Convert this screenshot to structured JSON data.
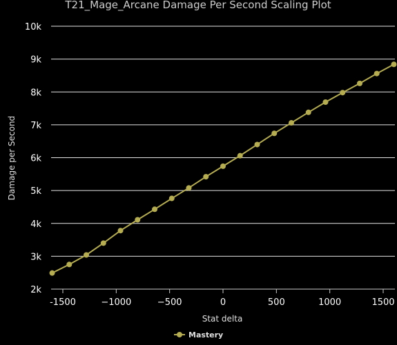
{
  "chart_data": {
    "type": "line",
    "title": "T21_Mage_Arcane Damage Per Second Scaling Plot",
    "xlabel": "Stat delta",
    "ylabel": "Damage per Second",
    "xlim": [
      -1610,
      1610
    ],
    "ylim": [
      2000,
      10000
    ],
    "x_ticks": [
      -1500,
      -1000,
      -500,
      0,
      500,
      1000,
      1500
    ],
    "x_tick_labels": [
      "-1500",
      "−1000",
      "−500",
      "0",
      "500",
      "1000",
      "1500"
    ],
    "y_ticks": [
      2000,
      3000,
      4000,
      5000,
      6000,
      7000,
      8000,
      9000,
      10000
    ],
    "y_tick_labels": [
      "2k",
      "3k",
      "4k",
      "5k",
      "6k",
      "7k",
      "8k",
      "9k",
      "10k"
    ],
    "grid": true,
    "legend_position": "bottom-center",
    "series": [
      {
        "name": "Mastery",
        "color": "#b5ad4f",
        "x": [
          -1600,
          -1440,
          -1280,
          -1120,
          -960,
          -800,
          -640,
          -480,
          -320,
          -160,
          0,
          160,
          320,
          480,
          640,
          800,
          960,
          1120,
          1280,
          1440,
          1600
        ],
        "y": [
          2490,
          2750,
          3040,
          3400,
          3780,
          4110,
          4430,
          4760,
          5080,
          5420,
          5740,
          6060,
          6400,
          6740,
          7060,
          7380,
          7690,
          7980,
          8260,
          8560,
          8840
        ]
      }
    ]
  }
}
